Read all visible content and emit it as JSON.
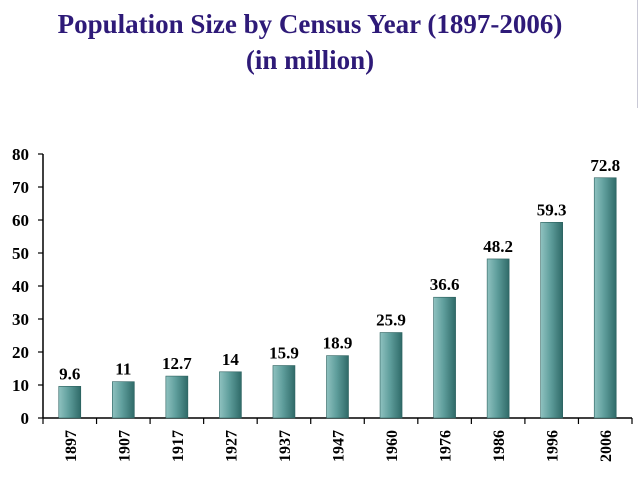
{
  "title_line1": "Population Size by Census Year (1897-2006)",
  "title_line2": "(in million)",
  "colors": {
    "title": "#2e1a78",
    "bar_light": "#8fc2c0",
    "bar_mid": "#5f9e9c",
    "bar_dark": "#2f6a68",
    "axis": "#000000"
  },
  "chart_data": {
    "type": "bar",
    "title": "Population Size by Census Year (1897-2006) (in million)",
    "categories": [
      "1897",
      "1907",
      "1917",
      "1927",
      "1937",
      "1947",
      "1960",
      "1976",
      "1986",
      "1996",
      "2006"
    ],
    "values": [
      9.6,
      11,
      12.7,
      14,
      15.9,
      18.9,
      25.9,
      36.6,
      48.2,
      59.3,
      72.8
    ],
    "value_labels": [
      "9.6",
      "11",
      "12.7",
      "14",
      "15.9",
      "18.9",
      "25.9",
      "36.6",
      "48.2",
      "59.3",
      "72.8"
    ],
    "ylim": [
      0,
      80
    ],
    "yticks": [
      0,
      10,
      20,
      30,
      40,
      50,
      60,
      70,
      80
    ],
    "grid": false,
    "legend": "none"
  }
}
